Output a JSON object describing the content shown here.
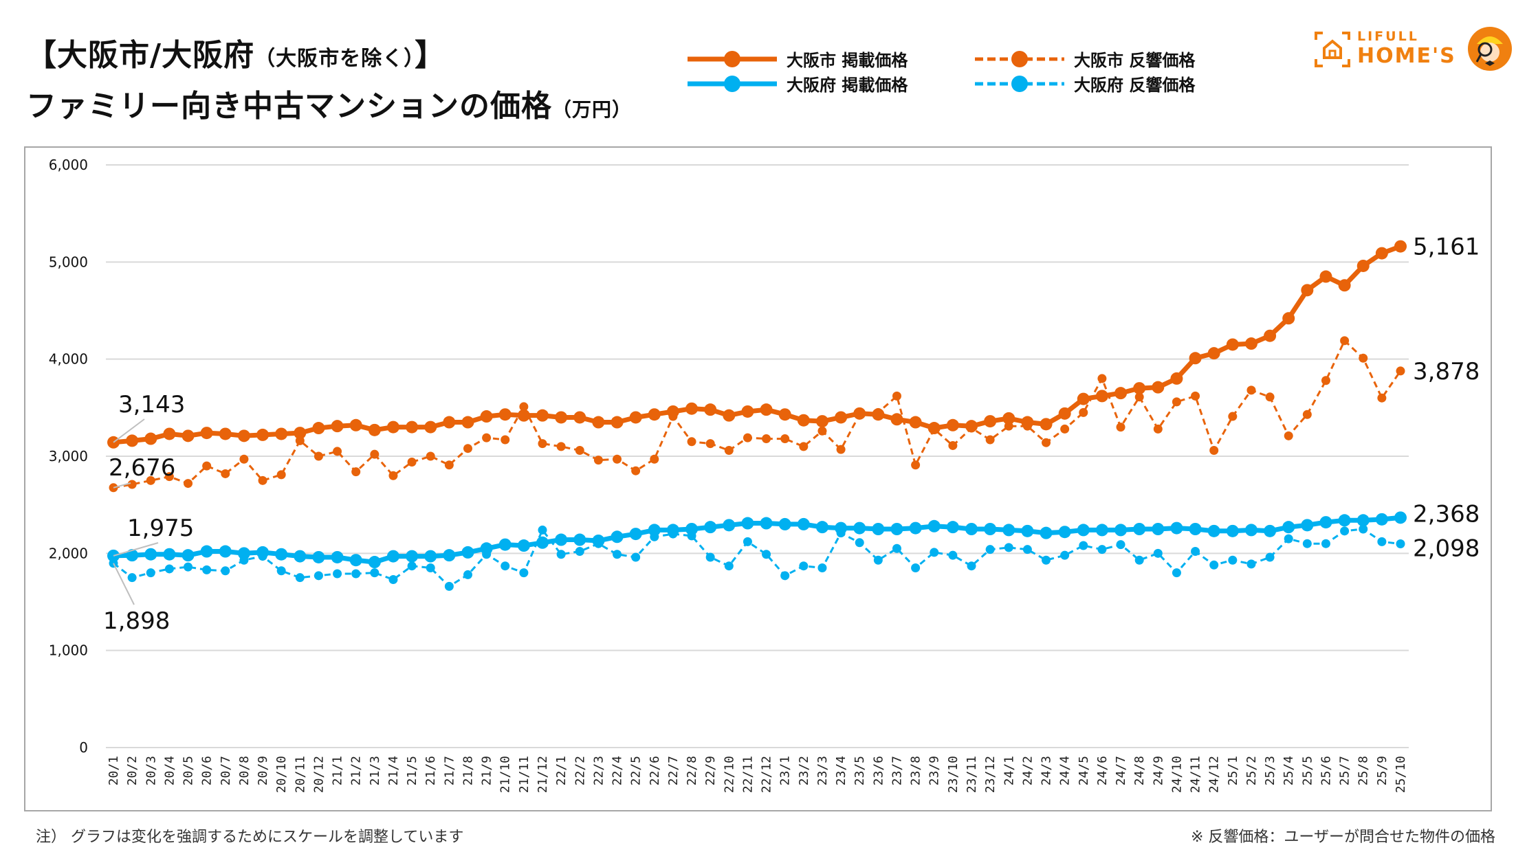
{
  "header": {
    "title_line1_main": "【大阪市/大阪府",
    "title_line1_sub": "（大阪市を除く）",
    "title_line1_end": "】",
    "title_line2_main": "ファミリー向き中古マンションの価格",
    "title_line2_unit": "（万円）"
  },
  "logo": {
    "line1": "LIFULL",
    "line2": "HOME'S",
    "icon": "house-icon",
    "mascot": "mascot-icon"
  },
  "colors": {
    "osaka_city": "#e8630a",
    "osaka_pref": "#00b0f0",
    "grid": "#d9d9d9",
    "frame": "#a6a6a6"
  },
  "legend": [
    {
      "label": "大阪市 掲載価格",
      "style": "solid",
      "color": "#e8630a"
    },
    {
      "label": "大阪府 掲載価格",
      "style": "solid",
      "color": "#00b0f0"
    },
    {
      "label": "大阪市 反響価格",
      "style": "dashed",
      "color": "#e8630a"
    },
    {
      "label": "大阪府 反響価格",
      "style": "dashed",
      "color": "#00b0f0"
    }
  ],
  "footer": {
    "note_left": "注）  グラフは変化を強調するためにスケールを調整しています",
    "note_right": "※ 反響価格：ユーザーが問合せた物件の価格"
  },
  "chart_data": {
    "type": "line",
    "title": "【大阪市/大阪府（大阪市を除く）】ファミリー向き中古マンションの価格（万円）",
    "xlabel": "",
    "ylabel": "",
    "ylim": [
      0,
      6000
    ],
    "yticks": [
      0,
      1000,
      2000,
      3000,
      4000,
      5000,
      6000
    ],
    "ytick_labels": [
      "0",
      "1,000",
      "2,000",
      "3,000",
      "4,000",
      "5,000",
      "6,000"
    ],
    "grid": true,
    "legend_position": "top-center",
    "x": [
      "20/1",
      "20/2",
      "20/3",
      "20/4",
      "20/5",
      "20/6",
      "20/7",
      "20/8",
      "20/9",
      "20/10",
      "20/11",
      "20/12",
      "21/1",
      "21/2",
      "21/3",
      "21/4",
      "21/5",
      "21/6",
      "21/7",
      "21/8",
      "21/9",
      "21/10",
      "21/11",
      "21/12",
      "22/1",
      "22/2",
      "22/3",
      "22/4",
      "22/5",
      "22/6",
      "22/7",
      "22/8",
      "22/9",
      "22/10",
      "22/11",
      "22/12",
      "23/1",
      "23/2",
      "23/3",
      "23/4",
      "23/5",
      "23/6",
      "23/7",
      "23/8",
      "23/9",
      "23/10",
      "23/11",
      "23/12",
      "24/1",
      "24/2",
      "24/3",
      "24/4",
      "24/5",
      "24/6",
      "24/7",
      "24/8",
      "24/9",
      "24/10",
      "24/11",
      "24/12",
      "25/1",
      "25/2",
      "25/3",
      "25/4",
      "25/5",
      "25/6",
      "25/7",
      "25/8",
      "25/9",
      "25/10"
    ],
    "series": [
      {
        "name": "大阪市 掲載価格",
        "style": "solid",
        "color": "#e8630a",
        "values": [
          3143,
          3160,
          3180,
          3230,
          3210,
          3240,
          3230,
          3210,
          3220,
          3230,
          3240,
          3290,
          3310,
          3320,
          3270,
          3300,
          3300,
          3300,
          3350,
          3350,
          3410,
          3430,
          3420,
          3420,
          3400,
          3400,
          3350,
          3350,
          3400,
          3430,
          3460,
          3490,
          3480,
          3420,
          3460,
          3480,
          3430,
          3370,
          3360,
          3400,
          3440,
          3430,
          3380,
          3350,
          3290,
          3320,
          3310,
          3360,
          3390,
          3350,
          3330,
          3440,
          3590,
          3620,
          3650,
          3700,
          3710,
          3800,
          4010,
          4060,
          4150,
          4160,
          4240,
          4420,
          4710,
          4850,
          4760,
          4960,
          5090,
          5161
        ],
        "first_label": "3,143",
        "last_label": "5,161"
      },
      {
        "name": "大阪市 反響価格",
        "style": "dashed",
        "color": "#e8630a",
        "values": [
          2676,
          2710,
          2750,
          2790,
          2720,
          2900,
          2820,
          2970,
          2750,
          2810,
          3160,
          3000,
          3050,
          2840,
          3020,
          2800,
          2940,
          3000,
          2910,
          3080,
          3190,
          3170,
          3510,
          3130,
          3100,
          3060,
          2960,
          2970,
          2850,
          2970,
          3410,
          3150,
          3130,
          3060,
          3190,
          3180,
          3180,
          3100,
          3260,
          3070,
          3430,
          3450,
          3620,
          2910,
          3280,
          3110,
          3290,
          3170,
          3310,
          3310,
          3140,
          3280,
          3450,
          3800,
          3300,
          3610,
          3280,
          3560,
          3620,
          3060,
          3410,
          3680,
          3610,
          3210,
          3430,
          3780,
          4190,
          4010,
          3600,
          3878
        ],
        "first_label": "2,676",
        "last_label": "3,878"
      },
      {
        "name": "大阪府 掲載価格",
        "style": "solid",
        "color": "#00b0f0",
        "values": [
          1975,
          1980,
          1990,
          1990,
          1980,
          2020,
          2020,
          2000,
          2010,
          1990,
          1970,
          1960,
          1960,
          1930,
          1910,
          1970,
          1970,
          1970,
          1980,
          2010,
          2050,
          2090,
          2080,
          2110,
          2140,
          2140,
          2130,
          2170,
          2200,
          2240,
          2240,
          2250,
          2270,
          2290,
          2310,
          2310,
          2300,
          2300,
          2270,
          2260,
          2260,
          2250,
          2250,
          2260,
          2280,
          2270,
          2250,
          2250,
          2240,
          2230,
          2210,
          2220,
          2240,
          2240,
          2240,
          2250,
          2250,
          2260,
          2250,
          2230,
          2230,
          2240,
          2230,
          2270,
          2290,
          2320,
          2340,
          2340,
          2350,
          2368
        ],
        "first_label": "1,975",
        "last_label": "2,368"
      },
      {
        "name": "大阪府 反響価格",
        "style": "dashed",
        "color": "#00b0f0",
        "values": [
          1898,
          1750,
          1800,
          1840,
          1860,
          1830,
          1820,
          1930,
          1970,
          1820,
          1750,
          1770,
          1790,
          1790,
          1800,
          1730,
          1870,
          1850,
          1660,
          1780,
          1990,
          1870,
          1800,
          2240,
          1990,
          2020,
          2100,
          1990,
          1960,
          2170,
          2200,
          2180,
          1960,
          1870,
          2120,
          1990,
          1770,
          1870,
          1850,
          2210,
          2110,
          1930,
          2050,
          1850,
          2010,
          1980,
          1870,
          2040,
          2060,
          2040,
          1930,
          1980,
          2080,
          2040,
          2090,
          1930,
          2000,
          1800,
          2020,
          1880,
          1930,
          1890,
          1960,
          2150,
          2100,
          2100,
          2230,
          2250,
          2120,
          2098
        ],
        "first_label": "1,898",
        "last_label": "2,098"
      }
    ]
  }
}
